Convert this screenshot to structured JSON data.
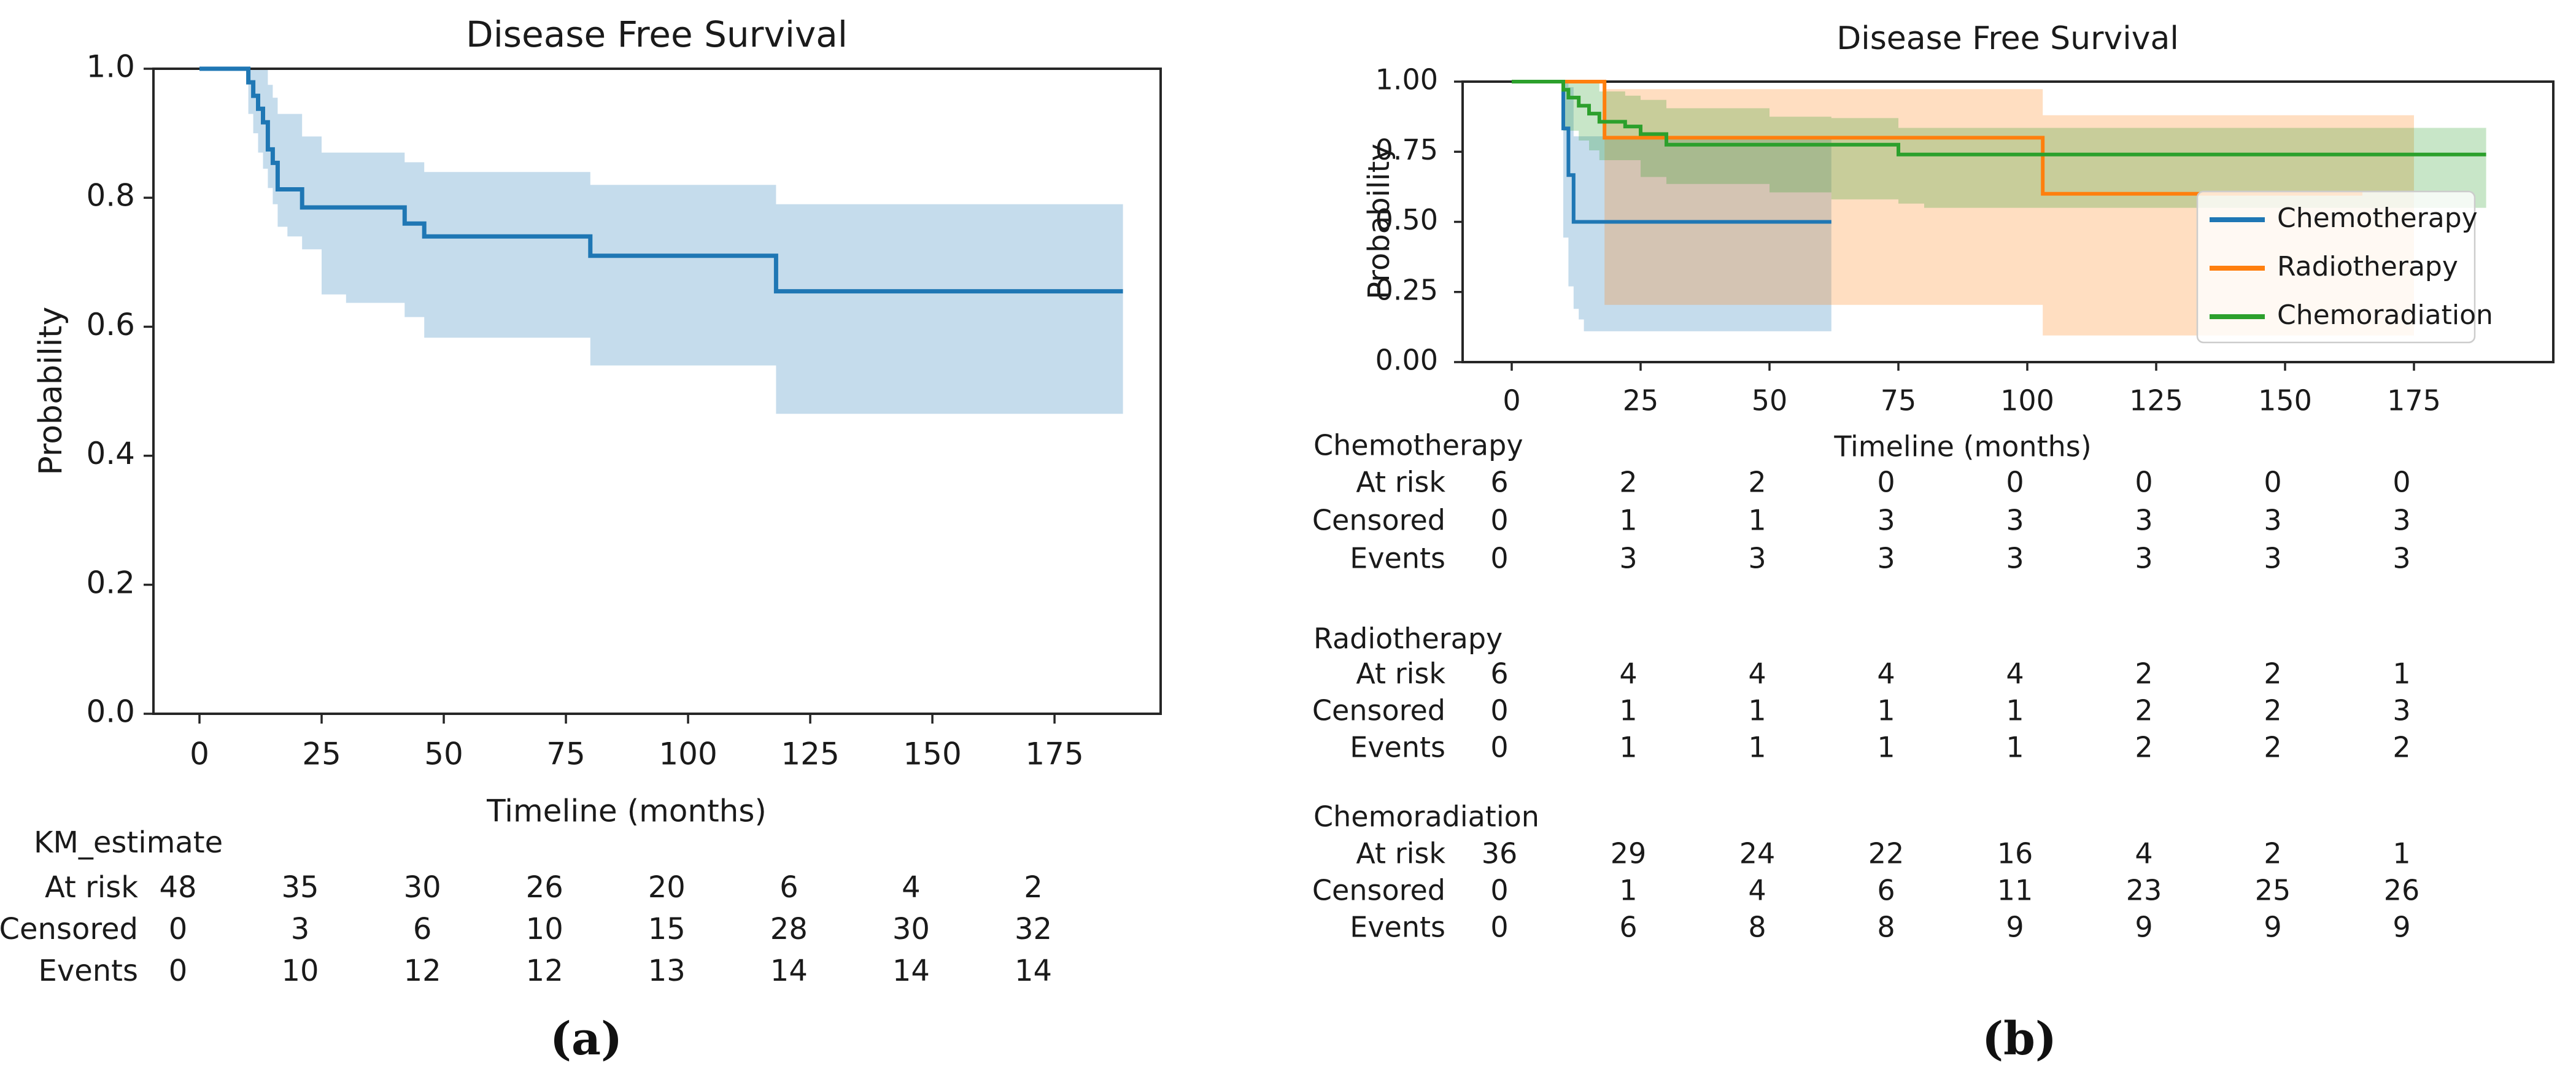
{
  "colors": {
    "blue": "#1f77b4",
    "orange": "#ff7f0e",
    "green": "#2ca02c",
    "spine": "#262626",
    "text": "#1a1a1a",
    "legend_border": "#cccccc"
  },
  "chart_data": [
    {
      "panel": "a",
      "type": "line",
      "chart_kind": "kaplan-meier-step",
      "title": "Disease Free Survival",
      "xlabel": "Timeline (months)",
      "ylabel": "Probability",
      "xticks": [
        0,
        25,
        50,
        75,
        100,
        125,
        150,
        175
      ],
      "ytick_labels": [
        "0.0",
        "0.2",
        "0.4",
        "0.6",
        "0.8",
        "1.0"
      ],
      "yticks": [
        0.0,
        0.2,
        0.4,
        0.6,
        0.8,
        1.0
      ],
      "xlim": [
        -10,
        197
      ],
      "ylim": [
        0.0,
        1.0
      ],
      "grid": false,
      "legend": null,
      "series": [
        {
          "name": "KM_estimate",
          "color": "#1f77b4",
          "steps": [
            [
              0,
              1.0
            ],
            [
              10,
              0.979
            ],
            [
              11,
              0.958
            ],
            [
              12,
              0.938
            ],
            [
              13,
              0.917
            ],
            [
              14,
              0.875
            ],
            [
              15,
              0.854
            ],
            [
              16,
              0.813
            ],
            [
              21,
              0.785
            ],
            [
              42,
              0.76
            ],
            [
              46,
              0.74
            ],
            [
              80,
              0.71
            ],
            [
              118,
              0.655
            ],
            [
              189,
              0.655
            ]
          ],
          "ci_upper": [
            [
              10,
              1.0
            ],
            [
              13,
              1.0
            ],
            [
              14,
              0.975
            ],
            [
              15,
              0.955
            ],
            [
              16,
              0.93
            ],
            [
              21,
              0.895
            ],
            [
              25,
              0.87
            ],
            [
              42,
              0.855
            ],
            [
              46,
              0.84
            ],
            [
              80,
              0.82
            ],
            [
              118,
              0.79
            ],
            [
              189,
              0.79
            ]
          ],
          "ci_lower": [
            [
              10,
              0.93
            ],
            [
              11,
              0.9
            ],
            [
              12,
              0.87
            ],
            [
              13,
              0.845
            ],
            [
              14,
              0.815
            ],
            [
              15,
              0.79
            ],
            [
              16,
              0.755
            ],
            [
              18,
              0.74
            ],
            [
              21,
              0.72
            ],
            [
              25,
              0.65
            ],
            [
              30,
              0.637
            ],
            [
              42,
              0.615
            ],
            [
              46,
              0.583
            ],
            [
              80,
              0.54
            ],
            [
              118,
              0.465
            ],
            [
              189,
              0.465
            ]
          ]
        }
      ],
      "risk_table": {
        "header": "KM_estimate",
        "columns": [
          0,
          25,
          50,
          75,
          100,
          125,
          150,
          175
        ],
        "rows": [
          {
            "label": "At risk",
            "values": [
              48,
              35,
              30,
              26,
              20,
              6,
              4,
              2
            ]
          },
          {
            "label": "Censored",
            "values": [
              0,
              3,
              6,
              10,
              15,
              28,
              30,
              32
            ]
          },
          {
            "label": "Events",
            "values": [
              0,
              10,
              12,
              12,
              13,
              14,
              14,
              14
            ]
          }
        ]
      },
      "caption": "(a)"
    },
    {
      "panel": "b",
      "type": "line",
      "chart_kind": "kaplan-meier-step",
      "title": "Disease Free Survival",
      "xlabel": "Timeline (months)",
      "ylabel": "Probability",
      "xticks": [
        0,
        25,
        50,
        75,
        100,
        125,
        150,
        175
      ],
      "ytick_labels": [
        "0.00",
        "0.25",
        "0.50",
        "0.75",
        "1.00"
      ],
      "yticks": [
        0.0,
        0.25,
        0.5,
        0.75,
        1.0
      ],
      "xlim": [
        -10,
        198
      ],
      "ylim": [
        0.0,
        1.0
      ],
      "grid": false,
      "legend": {
        "position": "lower right",
        "entries": [
          "Chemotherapy",
          "Radiotherapy",
          "Chemoradiation"
        ]
      },
      "series": [
        {
          "name": "Chemotherapy",
          "color": "#1f77b4",
          "steps": [
            [
              0,
              1.0
            ],
            [
              10,
              0.833
            ],
            [
              11,
              0.667
            ],
            [
              12,
              0.5
            ],
            [
              62,
              0.5
            ]
          ],
          "ci_upper": [
            [
              10,
              1.0
            ],
            [
              11,
              0.98
            ],
            [
              12,
              0.805
            ],
            [
              62,
              0.805
            ]
          ],
          "ci_lower": [
            [
              10,
              0.444
            ],
            [
              11,
              0.27
            ],
            [
              12,
              0.19
            ],
            [
              13,
              0.152
            ],
            [
              14,
              0.11
            ],
            [
              62,
              0.11
            ]
          ]
        },
        {
          "name": "Radiotherapy",
          "color": "#ff7f0e",
          "steps": [
            [
              0,
              1.0
            ],
            [
              18,
              0.8
            ],
            [
              103,
              0.6
            ],
            [
              165,
              0.6
            ]
          ],
          "ci_upper": [
            [
              18,
              0.973
            ],
            [
              103,
              0.88
            ],
            [
              175,
              0.88
            ]
          ],
          "ci_lower": [
            [
              18,
              0.204
            ],
            [
              103,
              0.095
            ],
            [
              175,
              0.095
            ]
          ]
        },
        {
          "name": "Chemoradiation",
          "color": "#2ca02c",
          "steps": [
            [
              0,
              1.0
            ],
            [
              10,
              0.971
            ],
            [
              11,
              0.943
            ],
            [
              13,
              0.914
            ],
            [
              15,
              0.886
            ],
            [
              17,
              0.857
            ],
            [
              22,
              0.84
            ],
            [
              25,
              0.813
            ],
            [
              30,
              0.775
            ],
            [
              75,
              0.74
            ],
            [
              189,
              0.74
            ]
          ],
          "ci_upper": [
            [
              10,
              1.0
            ],
            [
              14,
              0.995
            ],
            [
              17,
              0.965
            ],
            [
              22,
              0.95
            ],
            [
              25,
              0.935
            ],
            [
              30,
              0.905
            ],
            [
              50,
              0.875
            ],
            [
              62,
              0.87
            ],
            [
              75,
              0.835
            ],
            [
              189,
              0.835
            ]
          ],
          "ci_lower": [
            [
              10,
              0.825
            ],
            [
              13,
              0.79
            ],
            [
              15,
              0.755
            ],
            [
              17,
              0.72
            ],
            [
              25,
              0.66
            ],
            [
              30,
              0.635
            ],
            [
              50,
              0.605
            ],
            [
              62,
              0.58
            ],
            [
              75,
              0.565
            ],
            [
              80,
              0.55
            ],
            [
              189,
              0.55
            ]
          ]
        }
      ],
      "risk_tables": [
        {
          "group": "Chemotherapy",
          "rows": [
            {
              "label": "At risk",
              "values": [
                6,
                2,
                2,
                0,
                0,
                0,
                0,
                0
              ]
            },
            {
              "label": "Censored",
              "values": [
                0,
                1,
                1,
                3,
                3,
                3,
                3,
                3
              ]
            },
            {
              "label": "Events",
              "values": [
                0,
                3,
                3,
                3,
                3,
                3,
                3,
                3
              ]
            }
          ]
        },
        {
          "group": "Radiotherapy",
          "rows": [
            {
              "label": "At risk",
              "values": [
                6,
                4,
                4,
                4,
                4,
                2,
                2,
                1
              ]
            },
            {
              "label": "Censored",
              "values": [
                0,
                1,
                1,
                1,
                1,
                2,
                2,
                3
              ]
            },
            {
              "label": "Events",
              "values": [
                0,
                1,
                1,
                1,
                1,
                2,
                2,
                2
              ]
            }
          ]
        },
        {
          "group": "Chemoradiation",
          "rows": [
            {
              "label": "At risk",
              "values": [
                36,
                29,
                24,
                22,
                16,
                4,
                2,
                1
              ]
            },
            {
              "label": "Censored",
              "values": [
                0,
                1,
                4,
                6,
                11,
                23,
                25,
                26
              ]
            },
            {
              "label": "Events",
              "values": [
                0,
                6,
                8,
                8,
                9,
                9,
                9,
                9
              ]
            }
          ]
        }
      ],
      "caption": "(b)"
    }
  ]
}
